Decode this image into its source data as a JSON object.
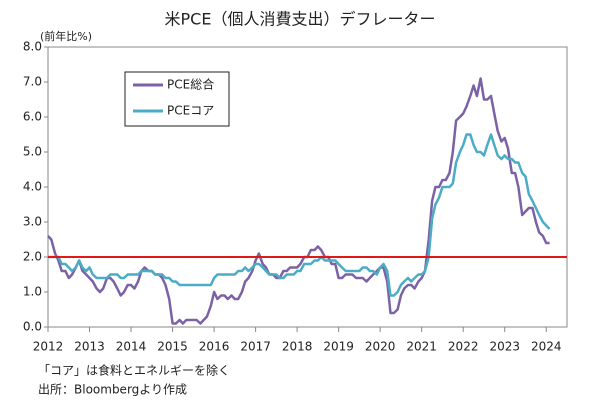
{
  "chart_data": {
    "type": "line",
    "title": "米PCE（個人消費支出）デフレーター",
    "y_unit": "(前年比%)",
    "notes": [
      "「コア」は食料とエネルギーを除く",
      "出所：Bloombergより作成"
    ],
    "x": [
      2012,
      2012.08,
      2012.17,
      2012.25,
      2012.33,
      2012.42,
      2012.5,
      2012.58,
      2012.67,
      2012.75,
      2012.83,
      2012.92,
      2013,
      2013.08,
      2013.17,
      2013.25,
      2013.33,
      2013.42,
      2013.5,
      2013.58,
      2013.67,
      2013.75,
      2013.83,
      2013.92,
      2014,
      2014.08,
      2014.17,
      2014.25,
      2014.33,
      2014.42,
      2014.5,
      2014.58,
      2014.67,
      2014.75,
      2014.83,
      2014.92,
      2015,
      2015.08,
      2015.17,
      2015.25,
      2015.33,
      2015.42,
      2015.5,
      2015.58,
      2015.67,
      2015.75,
      2015.83,
      2015.92,
      2016,
      2016.08,
      2016.17,
      2016.25,
      2016.33,
      2016.42,
      2016.5,
      2016.58,
      2016.67,
      2016.75,
      2016.83,
      2016.92,
      2017,
      2017.08,
      2017.17,
      2017.25,
      2017.33,
      2017.42,
      2017.5,
      2017.58,
      2017.67,
      2017.75,
      2017.83,
      2017.92,
      2018,
      2018.08,
      2018.17,
      2018.25,
      2018.33,
      2018.42,
      2018.5,
      2018.58,
      2018.67,
      2018.75,
      2018.83,
      2018.92,
      2019,
      2019.08,
      2019.17,
      2019.25,
      2019.33,
      2019.42,
      2019.5,
      2019.58,
      2019.67,
      2019.75,
      2019.83,
      2019.92,
      2020,
      2020.08,
      2020.17,
      2020.25,
      2020.33,
      2020.42,
      2020.5,
      2020.58,
      2020.67,
      2020.75,
      2020.83,
      2020.92,
      2021,
      2021.08,
      2021.17,
      2021.25,
      2021.33,
      2021.42,
      2021.5,
      2021.58,
      2021.67,
      2021.75,
      2021.83,
      2021.92,
      2022,
      2022.08,
      2022.17,
      2022.25,
      2022.33,
      2022.42,
      2022.5,
      2022.58,
      2022.67,
      2022.75,
      2022.83,
      2022.92,
      2023,
      2023.08,
      2023.17,
      2023.25,
      2023.33,
      2023.42,
      2023.5,
      2023.58,
      2023.67,
      2023.75,
      2023.83,
      2023.92,
      2024,
      2024.08
    ],
    "series": [
      {
        "name": "PCE総合",
        "color": "#7b62a6",
        "values": [
          2.6,
          2.5,
          2.1,
          1.9,
          1.6,
          1.6,
          1.4,
          1.5,
          1.7,
          1.9,
          1.6,
          1.5,
          1.4,
          1.3,
          1.1,
          1.0,
          1.1,
          1.4,
          1.4,
          1.3,
          1.1,
          0.9,
          1.0,
          1.2,
          1.2,
          1.1,
          1.3,
          1.6,
          1.7,
          1.6,
          1.6,
          1.5,
          1.5,
          1.4,
          1.2,
          0.8,
          0.1,
          0.1,
          0.2,
          0.1,
          0.2,
          0.2,
          0.2,
          0.2,
          0.1,
          0.2,
          0.3,
          0.6,
          1.0,
          0.8,
          0.9,
          0.9,
          0.8,
          0.9,
          0.8,
          0.8,
          1.0,
          1.3,
          1.4,
          1.6,
          1.9,
          2.1,
          1.8,
          1.7,
          1.5,
          1.5,
          1.4,
          1.4,
          1.6,
          1.6,
          1.7,
          1.7,
          1.7,
          1.8,
          2.0,
          2.0,
          2.2,
          2.2,
          2.3,
          2.2,
          2.0,
          2.0,
          1.8,
          1.8,
          1.4,
          1.4,
          1.5,
          1.5,
          1.5,
          1.4,
          1.4,
          1.4,
          1.3,
          1.4,
          1.5,
          1.6,
          1.7,
          1.7,
          1.3,
          0.4,
          0.4,
          0.5,
          0.9,
          1.1,
          1.2,
          1.2,
          1.1,
          1.3,
          1.4,
          1.6,
          2.5,
          3.6,
          4.0,
          4.0,
          4.2,
          4.2,
          4.4,
          5.0,
          5.9,
          6.0,
          6.1,
          6.3,
          6.6,
          6.9,
          6.6,
          7.1,
          6.5,
          6.5,
          6.6,
          6.1,
          5.6,
          5.3,
          5.4,
          5.1,
          4.4,
          4.4,
          4.0,
          3.2,
          3.3,
          3.4,
          3.4,
          3.0,
          2.7,
          2.6,
          2.4,
          2.4
        ]
      },
      {
        "name": "PCEコア",
        "color": "#4bacc6",
        "values": [
          2.0,
          2.0,
          2.0,
          2.0,
          1.8,
          1.8,
          1.7,
          1.6,
          1.7,
          1.9,
          1.7,
          1.6,
          1.7,
          1.5,
          1.4,
          1.4,
          1.4,
          1.4,
          1.5,
          1.5,
          1.5,
          1.4,
          1.4,
          1.5,
          1.5,
          1.5,
          1.5,
          1.6,
          1.6,
          1.6,
          1.6,
          1.5,
          1.5,
          1.5,
          1.4,
          1.4,
          1.3,
          1.3,
          1.2,
          1.2,
          1.2,
          1.2,
          1.2,
          1.2,
          1.2,
          1.2,
          1.2,
          1.2,
          1.4,
          1.5,
          1.5,
          1.5,
          1.5,
          1.5,
          1.5,
          1.6,
          1.6,
          1.7,
          1.6,
          1.7,
          1.8,
          1.8,
          1.7,
          1.6,
          1.5,
          1.5,
          1.5,
          1.4,
          1.4,
          1.5,
          1.5,
          1.5,
          1.6,
          1.6,
          1.8,
          1.8,
          1.8,
          1.9,
          1.9,
          2.0,
          1.9,
          1.9,
          1.9,
          1.9,
          1.8,
          1.7,
          1.6,
          1.6,
          1.6,
          1.6,
          1.6,
          1.7,
          1.7,
          1.6,
          1.6,
          1.5,
          1.7,
          1.8,
          1.6,
          0.9,
          0.9,
          1.0,
          1.2,
          1.3,
          1.4,
          1.3,
          1.4,
          1.5,
          1.5,
          1.6,
          2.0,
          3.1,
          3.5,
          3.7,
          4.0,
          4.0,
          4.0,
          4.1,
          4.7,
          5.0,
          5.2,
          5.5,
          5.5,
          5.2,
          5.0,
          5.0,
          4.9,
          5.2,
          5.5,
          5.2,
          4.9,
          4.8,
          4.9,
          4.8,
          4.8,
          4.7,
          4.7,
          4.4,
          4.3,
          3.8,
          3.6,
          3.4,
          3.2,
          3.0,
          2.9,
          2.8
        ]
      }
    ],
    "reference_line": {
      "value": 2,
      "color": "#e01818"
    },
    "xlim": [
      2012,
      2024.5
    ],
    "xticks": [
      2012,
      2013,
      2014,
      2015,
      2016,
      2017,
      2018,
      2019,
      2020,
      2021,
      2022,
      2023,
      2024
    ],
    "ylim": [
      0,
      8
    ],
    "yticks": [
      {
        "value": 0,
        "label": "0.0"
      },
      {
        "value": 1,
        "label": "1.0"
      },
      {
        "value": 2,
        "label": "2.0"
      },
      {
        "value": 3,
        "label": "3.0"
      },
      {
        "value": 4,
        "label": "4.0"
      },
      {
        "value": 5,
        "label": "5.0"
      },
      {
        "value": 6,
        "label": "6.0"
      },
      {
        "value": 7,
        "label": "7.0"
      },
      {
        "value": 8,
        "label": "8.0"
      }
    ],
    "legend": "upper left"
  }
}
